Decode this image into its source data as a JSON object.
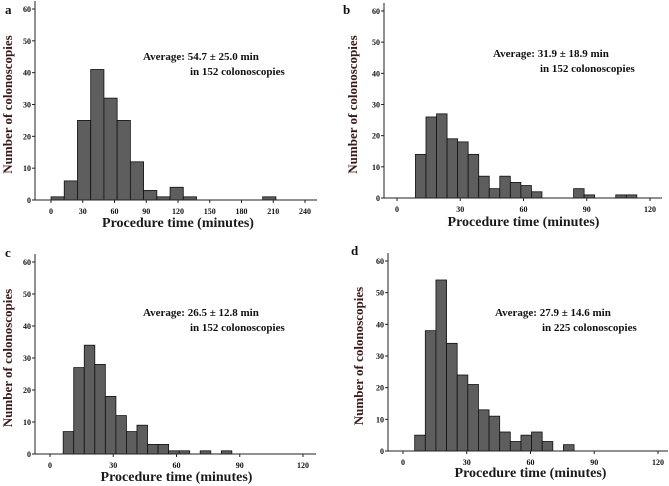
{
  "chart_data": [
    {
      "type": "bar",
      "panel_label": "a",
      "title": "",
      "xlabel": "Procedure time (minutes)",
      "ylabel": "Number of colonoscopies",
      "annotation": [
        "Average: 54.7 ± 25.0 min",
        "in 152 colonoscopies"
      ],
      "bin_start": 0,
      "bin_width": 12.5,
      "values": [
        1,
        6,
        25,
        41,
        32,
        25,
        12,
        3,
        1,
        4,
        1,
        0,
        0,
        0,
        0,
        0,
        1
      ],
      "xticks": [
        0,
        30,
        60,
        90,
        120,
        150,
        180,
        210,
        240
      ],
      "yticks": [
        0,
        10,
        20,
        30,
        40,
        50,
        60
      ],
      "xlim": [
        -10,
        250
      ],
      "ylim": [
        0,
        60
      ],
      "grid": false
    },
    {
      "type": "bar",
      "panel_label": "b",
      "title": "",
      "xlabel": "Procedure time (minutes)",
      "ylabel": "Number of colonoscopies",
      "annotation": [
        "Average: 31.9 ± 18.9 min",
        "in 152 colonoscopies"
      ],
      "bin_start": 8.75,
      "bin_width": 5,
      "values": [
        14,
        26,
        27,
        19,
        18,
        14,
        7,
        3,
        7,
        5,
        4,
        2,
        0,
        0,
        0,
        3,
        1,
        0,
        0,
        1,
        1
      ],
      "xticks": [
        0,
        30,
        60,
        90,
        120
      ],
      "yticks": [
        0,
        10,
        20,
        30,
        40,
        50,
        60
      ],
      "xlim": [
        -5,
        125
      ],
      "ylim": [
        0,
        60
      ],
      "grid": false
    },
    {
      "type": "bar",
      "panel_label": "c",
      "title": "",
      "xlabel": "Procedure time (minutes)",
      "ylabel": "Number of colonoscopies",
      "annotation": [
        "Average: 26.5 ± 12.8 min",
        "in 152 colonoscopies"
      ],
      "bin_start": 6.25,
      "bin_width": 5,
      "values": [
        7,
        27,
        34,
        28,
        18,
        12,
        7,
        9,
        3,
        3,
        1,
        1,
        0,
        1,
        0,
        1
      ],
      "xticks": [
        0,
        30,
        60,
        90,
        120
      ],
      "yticks": [
        0,
        10,
        20,
        30,
        40,
        50,
        60
      ],
      "xlim": [
        -5,
        125
      ],
      "ylim": [
        0,
        60
      ],
      "grid": false
    },
    {
      "type": "bar",
      "panel_label": "d",
      "title": "",
      "xlabel": "Procedure time (minutes)",
      "ylabel": "Number of colonoscopies",
      "annotation": [
        "Average: 27.9 ± 14.6 min",
        "in 225 colonoscopies"
      ],
      "bin_start": 5.5,
      "bin_width": 5,
      "values": [
        5,
        38,
        54,
        34,
        24,
        21,
        13,
        11,
        6,
        3,
        5,
        6,
        3,
        0,
        2
      ],
      "xticks": [
        0,
        30,
        60,
        90,
        120
      ],
      "yticks": [
        0,
        10,
        20,
        30,
        40,
        50,
        60
      ],
      "xlim": [
        -5,
        125
      ],
      "ylim": [
        0,
        60
      ],
      "grid": false
    }
  ]
}
